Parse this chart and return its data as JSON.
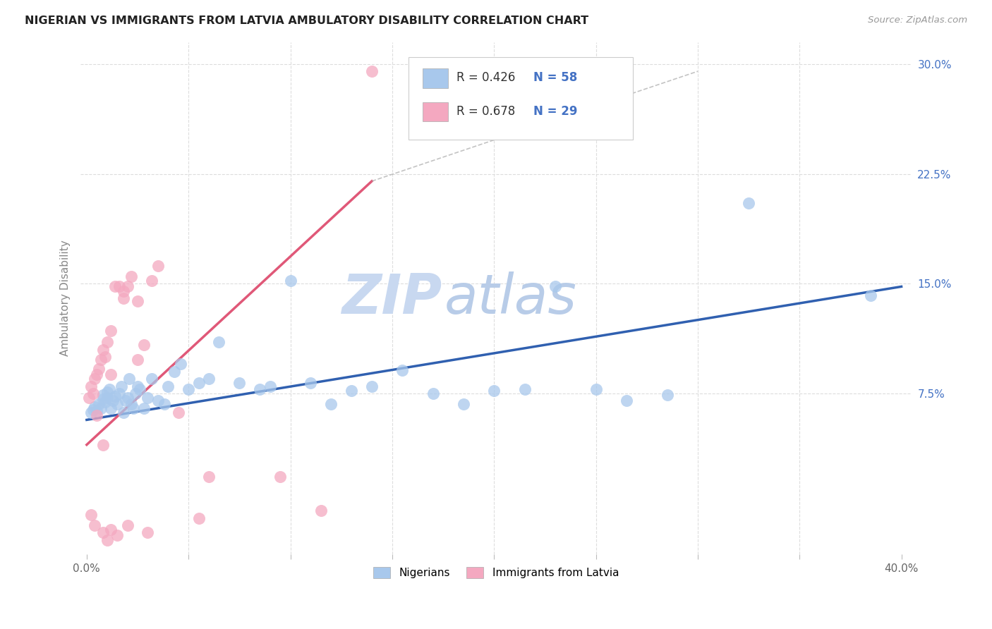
{
  "title": "NIGERIAN VS IMMIGRANTS FROM LATVIA AMBULATORY DISABILITY CORRELATION CHART",
  "source": "Source: ZipAtlas.com",
  "ylabel": "Ambulatory Disability",
  "xlim": [
    -0.003,
    0.405
  ],
  "ylim": [
    -0.035,
    0.315
  ],
  "xtick_pos": [
    0.0,
    0.05,
    0.1,
    0.15,
    0.2,
    0.25,
    0.3,
    0.35,
    0.4
  ],
  "yticks_right": [
    0.075,
    0.15,
    0.225,
    0.3
  ],
  "ytick_labels_right": [
    "7.5%",
    "15.0%",
    "22.5%",
    "30.0%"
  ],
  "nigerian_R": "0.426",
  "nigerian_N": "58",
  "latvia_R": "0.678",
  "latvia_N": "29",
  "nigerian_color": "#A8C8EC",
  "latvia_color": "#F4A8C0",
  "nigerian_line_color": "#3060B0",
  "latvia_line_color": "#E05878",
  "watermark_zip_color": "#C8D8F0",
  "watermark_atlas_color": "#B8CCE8",
  "background_color": "#FFFFFF",
  "grid_color": "#DDDDDD",
  "nigerian_x": [
    0.002,
    0.003,
    0.004,
    0.005,
    0.006,
    0.007,
    0.008,
    0.008,
    0.009,
    0.01,
    0.01,
    0.011,
    0.012,
    0.013,
    0.014,
    0.015,
    0.016,
    0.017,
    0.018,
    0.019,
    0.02,
    0.021,
    0.022,
    0.023,
    0.024,
    0.025,
    0.026,
    0.028,
    0.03,
    0.032,
    0.035,
    0.038,
    0.04,
    0.043,
    0.046,
    0.05,
    0.055,
    0.06,
    0.065,
    0.075,
    0.085,
    0.09,
    0.1,
    0.11,
    0.12,
    0.13,
    0.14,
    0.155,
    0.17,
    0.185,
    0.2,
    0.215,
    0.23,
    0.25,
    0.265,
    0.285,
    0.325,
    0.385
  ],
  "nigerian_y": [
    0.062,
    0.064,
    0.066,
    0.063,
    0.068,
    0.065,
    0.071,
    0.074,
    0.069,
    0.072,
    0.076,
    0.078,
    0.065,
    0.07,
    0.073,
    0.068,
    0.075,
    0.08,
    0.062,
    0.07,
    0.072,
    0.085,
    0.068,
    0.065,
    0.075,
    0.08,
    0.078,
    0.065,
    0.072,
    0.085,
    0.07,
    0.068,
    0.08,
    0.09,
    0.095,
    0.078,
    0.082,
    0.085,
    0.11,
    0.082,
    0.078,
    0.08,
    0.152,
    0.082,
    0.068,
    0.077,
    0.08,
    0.091,
    0.075,
    0.068,
    0.077,
    0.078,
    0.148,
    0.078,
    0.07,
    0.074,
    0.205,
    0.142
  ],
  "latvia_x": [
    0.001,
    0.002,
    0.003,
    0.004,
    0.005,
    0.006,
    0.007,
    0.008,
    0.009,
    0.01,
    0.012,
    0.014,
    0.016,
    0.018,
    0.02,
    0.022,
    0.025,
    0.028,
    0.032,
    0.005,
    0.008,
    0.012,
    0.018,
    0.025,
    0.035,
    0.045,
    0.06,
    0.095,
    0.14
  ],
  "latvia_y": [
    0.072,
    0.08,
    0.075,
    0.085,
    0.088,
    0.092,
    0.098,
    0.105,
    0.1,
    0.11,
    0.118,
    0.148,
    0.148,
    0.145,
    0.148,
    0.155,
    0.098,
    0.108,
    0.152,
    0.06,
    0.04,
    0.088,
    0.14,
    0.138,
    0.162,
    0.062,
    0.018,
    0.018,
    0.295
  ],
  "latvia_below_x": [
    0.002,
    0.004,
    0.008,
    0.01,
    0.012,
    0.015,
    0.02,
    0.03,
    0.055,
    0.115
  ],
  "latvia_below_y": [
    -0.008,
    -0.015,
    -0.02,
    -0.025,
    -0.018,
    -0.022,
    -0.015,
    -0.02,
    -0.01,
    -0.005
  ]
}
